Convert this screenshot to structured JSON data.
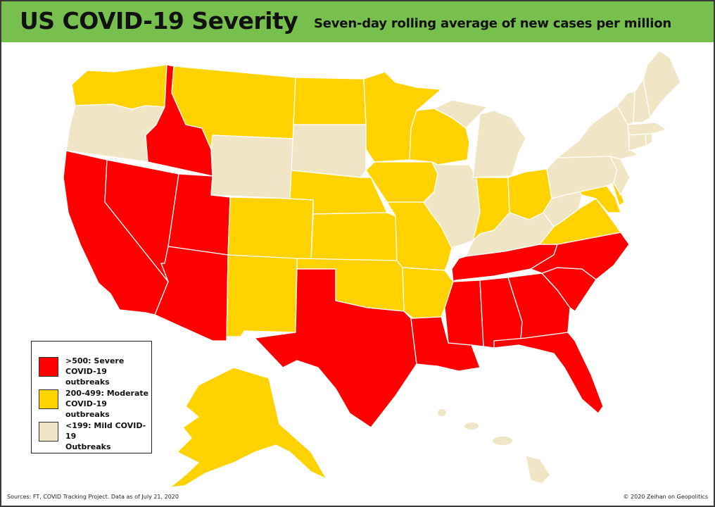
{
  "header": {
    "title": "US COVID-19 Severity",
    "subtitle": "Seven-day rolling average of new cases per million"
  },
  "colors": {
    "header_bg": "#77c04e",
    "severe": "#ff0000",
    "moderate": "#ffd200",
    "mild": "#f0e6c5",
    "border": "#ffffff"
  },
  "legend": {
    "items": [
      {
        "category": "severe",
        "line1": ">500: Severe",
        "line2": "COVID-19 outbreaks"
      },
      {
        "category": "moderate",
        "line1": "200-499: Moderate",
        "line2": "COVID-19 outbreaks"
      },
      {
        "category": "mild",
        "line1": "<199: Mild COVID-19",
        "line2": "Outbreaks"
      }
    ]
  },
  "states": {
    "WA": "moderate",
    "OR": "mild",
    "CA": "severe",
    "ID": "severe",
    "NV": "severe",
    "UT": "severe",
    "AZ": "severe",
    "MT": "moderate",
    "WY": "mild",
    "CO": "moderate",
    "NM": "moderate",
    "ND": "moderate",
    "SD": "mild",
    "NE": "moderate",
    "KS": "moderate",
    "OK": "moderate",
    "TX": "severe",
    "MN": "moderate",
    "IA": "moderate",
    "MO": "moderate",
    "AR": "moderate",
    "LA": "severe",
    "WI": "moderate",
    "IL": "mild",
    "MI": "mild",
    "IN": "moderate",
    "OH": "moderate",
    "KY": "mild",
    "TN": "severe",
    "MS": "severe",
    "AL": "severe",
    "GA": "severe",
    "FL": "severe",
    "SC": "severe",
    "NC": "severe",
    "VA": "moderate",
    "WV": "mild",
    "MD": "moderate",
    "DE": "moderate",
    "PA": "mild",
    "NJ": "mild",
    "NY": "mild",
    "CT": "mild",
    "RI": "mild",
    "MA": "mild",
    "VT": "mild",
    "NH": "mild",
    "ME": "mild",
    "AK": "moderate",
    "HI": "mild"
  },
  "footer": {
    "source": "Sources: FT, COVID Tracking Project. Data as of July 21, 2020",
    "copyright": "© 2020 Zeihan on Geopolitics"
  }
}
